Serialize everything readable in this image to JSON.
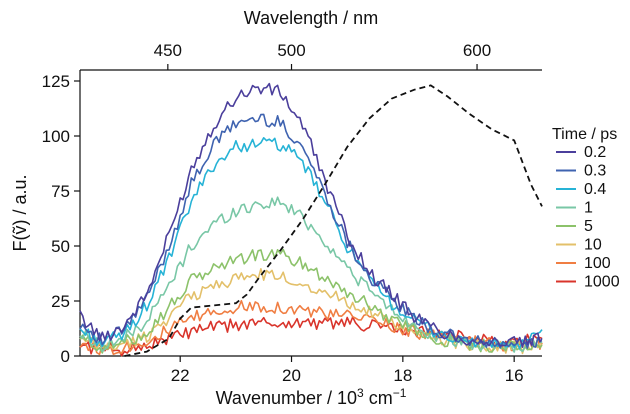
{
  "chart_data": {
    "type": "line",
    "xlabel": "Wavenumber / 10",
    "xlabel_sup": "3",
    "xlabel_unit": " cm",
    "xlabel_unit_sup": "−1",
    "ylabel": "F(ṽ) / a.u.",
    "top_xlabel": "Wavelength / nm",
    "xlim": [
      23.8,
      15.5
    ],
    "ylim": [
      0,
      130
    ],
    "x_reversed": true,
    "xticks": [
      22,
      20,
      18,
      16
    ],
    "yticks": [
      0,
      25,
      50,
      75,
      100,
      125
    ],
    "top_ticks": [
      {
        "label": "450",
        "wavenumber": 22.222
      },
      {
        "label": "500",
        "wavenumber": 20.0
      },
      {
        "label": "600",
        "wavenumber": 16.667
      }
    ],
    "legend": {
      "title": "Time / ps",
      "position": "right"
    },
    "x": [
      23.8,
      23.4,
      23.0,
      22.6,
      22.2,
      21.8,
      21.4,
      21.0,
      20.6,
      20.2,
      19.8,
      19.4,
      19.0,
      18.6,
      18.2,
      17.8,
      17.4,
      17.0,
      16.6,
      16.2,
      15.8,
      15.5
    ],
    "series": [
      {
        "name": "0.2",
        "color": "#4b3f9c",
        "values": [
          18,
          8,
          14,
          28,
          55,
          85,
          105,
          118,
          122,
          120,
          105,
          80,
          55,
          38,
          28,
          18,
          12,
          8,
          7,
          6,
          6,
          8
        ]
      },
      {
        "name": "0.3",
        "color": "#3f63b0",
        "values": [
          15,
          7,
          12,
          26,
          50,
          78,
          96,
          106,
          108,
          106,
          95,
          74,
          52,
          36,
          26,
          17,
          11,
          8,
          6,
          5,
          6,
          7
        ]
      },
      {
        "name": "0.4",
        "color": "#26b3d6",
        "values": [
          12,
          6,
          10,
          23,
          44,
          70,
          87,
          95,
          97,
          96,
          88,
          70,
          50,
          34,
          24,
          16,
          11,
          7,
          6,
          5,
          5,
          12
        ]
      },
      {
        "name": "1",
        "color": "#79c7a6",
        "values": [
          10,
          5,
          8,
          16,
          32,
          50,
          60,
          66,
          69,
          70,
          63,
          52,
          40,
          30,
          21,
          14,
          9,
          6,
          5,
          5,
          4,
          6
        ]
      },
      {
        "name": "5",
        "color": "#8cc26a",
        "values": [
          8,
          4,
          6,
          11,
          22,
          34,
          40,
          44,
          46,
          46,
          42,
          36,
          29,
          23,
          17,
          12,
          8,
          6,
          5,
          4,
          4,
          5
        ]
      },
      {
        "name": "10",
        "color": "#e3c06a",
        "values": [
          7,
          4,
          5,
          9,
          18,
          27,
          32,
          35,
          37,
          36,
          33,
          29,
          25,
          20,
          15,
          11,
          8,
          6,
          5,
          4,
          4,
          5
        ]
      },
      {
        "name": "100",
        "color": "#f07e43",
        "values": [
          6,
          3,
          4,
          7,
          12,
          17,
          20,
          22,
          23,
          22,
          21,
          19,
          18,
          17,
          14,
          11,
          9,
          7,
          6,
          5,
          5,
          6
        ]
      },
      {
        "name": "1000",
        "color": "#d9342b",
        "values": [
          5,
          3,
          3,
          5,
          8,
          11,
          13,
          14,
          15,
          15,
          15,
          15,
          15,
          14,
          13,
          11,
          10,
          9,
          8,
          7,
          7,
          8
        ]
      }
    ],
    "steady_state": {
      "style": "dashed",
      "color": "#111111",
      "x": [
        23.0,
        22.6,
        22.2,
        22.0,
        21.8,
        21.4,
        21.0,
        20.8,
        20.6,
        20.2,
        19.8,
        19.4,
        19.0,
        18.6,
        18.2,
        17.8,
        17.5,
        17.2,
        16.8,
        16.4,
        16.0,
        15.7,
        15.5
      ],
      "values": [
        0,
        2,
        8,
        17,
        22,
        23,
        24,
        28,
        35,
        48,
        62,
        78,
        95,
        108,
        117,
        121,
        123,
        118,
        110,
        103,
        98,
        78,
        68
      ]
    }
  }
}
